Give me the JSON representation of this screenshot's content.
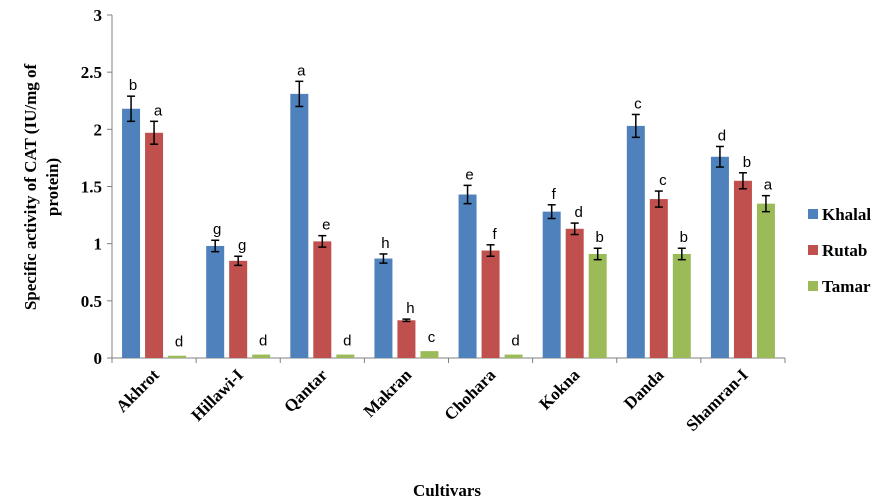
{
  "chart_data": {
    "type": "bar",
    "xlabel": "Cultivars",
    "ylabel_lines": [
      "Specific activity of CAT (IU/mg of",
      "protein)"
    ],
    "ylim": [
      0,
      3
    ],
    "yticks": [
      "0",
      "0.5",
      "1",
      "1.5",
      "2",
      "2.5",
      "3"
    ],
    "grid": false,
    "legend_position": "right",
    "categories": [
      "Akhrot",
      "Hillawi-I",
      "Qantar",
      "Makran",
      "Chohara",
      "Kokna",
      "Danda",
      "Shamran-I"
    ],
    "series": [
      {
        "name": "Khalal",
        "color": "#4f81bd",
        "values": [
          2.18,
          0.98,
          2.31,
          0.87,
          1.43,
          1.28,
          2.03,
          1.76
        ],
        "errors": [
          0.11,
          0.05,
          0.11,
          0.04,
          0.08,
          0.06,
          0.1,
          0.09
        ],
        "letters": [
          "b",
          "g",
          "a",
          "h",
          "e",
          "f",
          "c",
          "d"
        ]
      },
      {
        "name": "Rutab",
        "color": "#c0504d",
        "values": [
          1.97,
          0.85,
          1.02,
          0.33,
          0.94,
          1.13,
          1.39,
          1.55
        ],
        "errors": [
          0.1,
          0.04,
          0.05,
          0.01,
          0.05,
          0.05,
          0.07,
          0.07
        ],
        "letters": [
          "a",
          "g",
          "e",
          "h",
          "f",
          "d",
          "c",
          "b"
        ]
      },
      {
        "name": "Tamar",
        "color": "#9bbb59",
        "values": [
          0.02,
          0.03,
          0.03,
          0.06,
          0.03,
          0.91,
          0.91,
          1.35
        ],
        "errors": [
          0,
          0,
          0,
          0,
          0,
          0.05,
          0.05,
          0.07
        ],
        "letters": [
          "d",
          "d",
          "d",
          "c",
          "d",
          "b",
          "b",
          "a"
        ]
      }
    ]
  }
}
